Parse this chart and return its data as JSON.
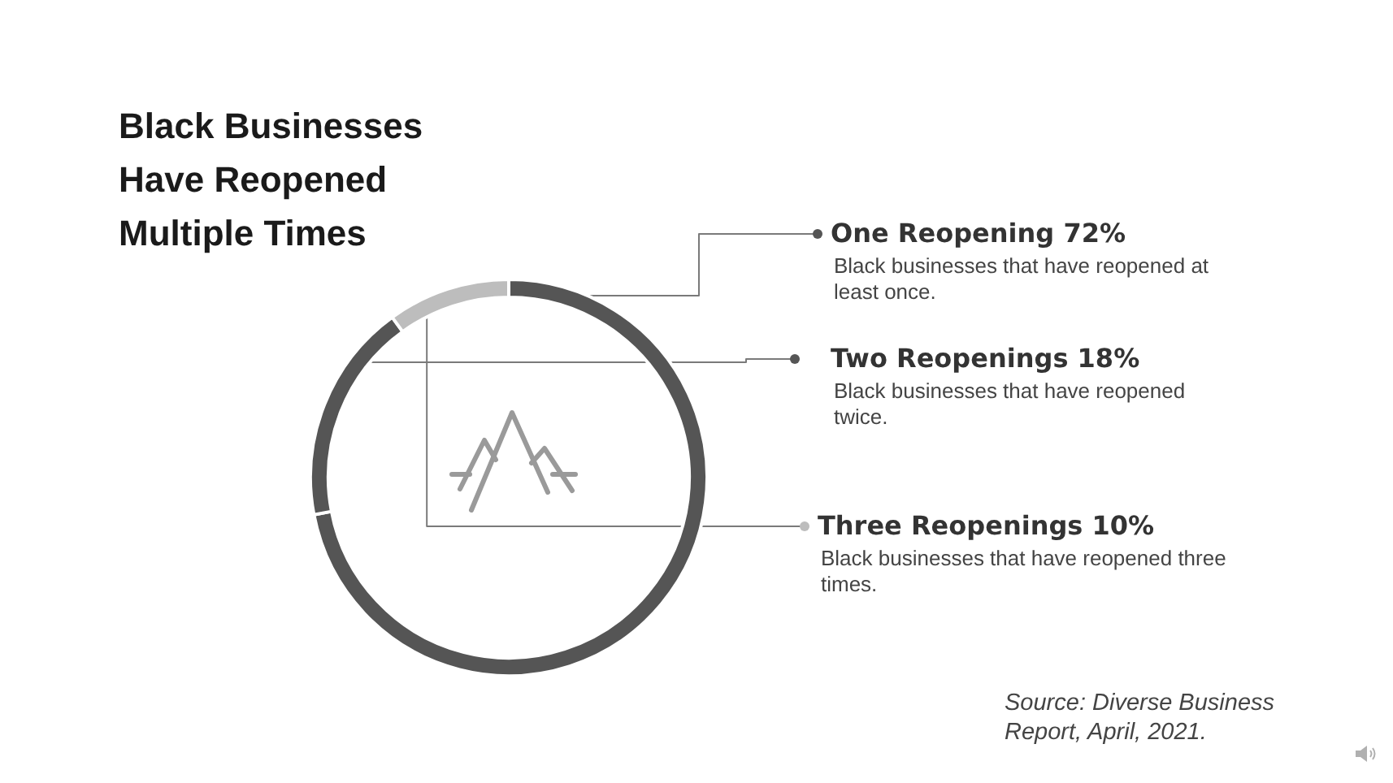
{
  "chart_data": {
    "type": "donut",
    "title": "Black Businesses Have Reopened Multiple Times",
    "categories": [
      "One Reopening",
      "Two Reopenings",
      "Three Reopenings"
    ],
    "values": [
      72,
      18,
      10
    ],
    "value_labels": [
      "72%",
      "18%",
      "10%"
    ],
    "colors": [
      "#555555",
      "#555555",
      "#bdbdbd"
    ],
    "legend": "right",
    "annotations": [
      "Black businesses that have reopened at least once.",
      "Black businesses that have reopened twice.",
      "Black businesses that have reopened three times.",
      "Source: Diverse Business Report, April, 2021."
    ]
  }
}
